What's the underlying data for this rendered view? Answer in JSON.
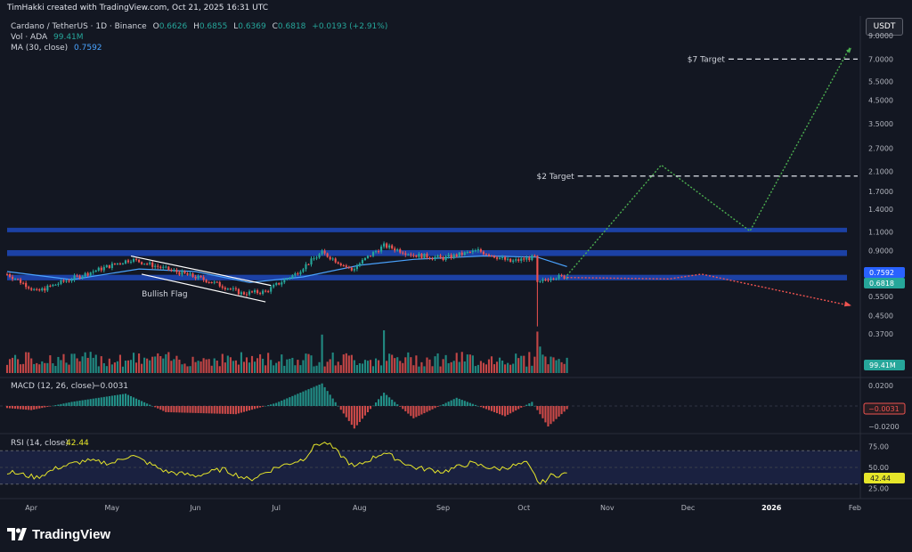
{
  "header": {
    "attribution": "TimHakki created with TradingView.com, Oct 21, 2025 16:31 UTC",
    "currency_button": "USDT"
  },
  "legend": {
    "symbol": "Cardano / TetherUS · 1D · Binance",
    "open_label": "O",
    "open": "0.6626",
    "high_label": "H",
    "high": "0.6855",
    "low_label": "L",
    "low": "0.6369",
    "close_label": "C",
    "close": "0.6818",
    "change": "+0.0193 (+2.91%)",
    "vol_label": "Vol · ADA",
    "vol_value": "99.41M",
    "ma_label": "MA (30, close)",
    "ma_value": "0.7592"
  },
  "brand": {
    "name": "TradingView",
    "logo_icon": "tradingview-logo-icon"
  },
  "colors": {
    "background": "#131722",
    "up": "#26a69a",
    "down": "#ef5350",
    "zone": "#1e46b4",
    "ma_line": "#4aa3ff",
    "projection_up": "#4caf50",
    "projection_down": "#ef5350",
    "rsi_line": "#e6e62a",
    "rsi_band": "#1a2140"
  },
  "chart_data": [
    {
      "type": "candlestick",
      "title": "Cardano / TetherUS · 1D · Binance",
      "y_scale": "log",
      "ylim": [
        0.38,
        9.0
      ],
      "y_ticks": [
        "9.0000",
        "7.0000",
        "5.5000",
        "4.5000",
        "3.5000",
        "2.7000",
        "2.1000",
        "1.7000",
        "1.4000",
        "1.1000",
        "0.9000",
        "0.7000",
        "0.5500",
        "0.4500",
        "0.3700"
      ],
      "x_ticks": [
        "Apr",
        "May",
        "Jun",
        "Jul",
        "Aug",
        "Sep",
        "Oct",
        "Nov",
        "Dec",
        "2026",
        "Feb"
      ],
      "x_range": [
        "2025-03-27",
        "2026-02-05"
      ],
      "price_labels": [
        {
          "text": "0.7592",
          "color": "#2962ff"
        },
        {
          "text": "0.6818",
          "color": "#26a69a"
        }
      ],
      "path_points": [
        [
          "2025-03-27",
          0.7
        ],
        [
          "2025-04-07",
          0.58
        ],
        [
          "2025-04-25",
          0.7
        ],
        [
          "2025-05-12",
          0.82
        ],
        [
          "2025-05-25",
          0.74
        ],
        [
          "2025-06-10",
          0.65
        ],
        [
          "2025-06-22",
          0.57
        ],
        [
          "2025-07-01",
          0.58
        ],
        [
          "2025-07-12",
          0.7
        ],
        [
          "2025-07-22",
          0.88
        ],
        [
          "2025-08-02",
          0.73
        ],
        [
          "2025-08-14",
          0.95
        ],
        [
          "2025-08-25",
          0.86
        ],
        [
          "2025-09-05",
          0.83
        ],
        [
          "2025-09-18",
          0.9
        ],
        [
          "2025-09-30",
          0.8
        ],
        [
          "2025-10-09",
          0.84
        ],
        [
          "2025-10-10",
          0.63
        ],
        [
          "2025-10-15",
          0.68
        ],
        [
          "2025-10-21",
          0.68
        ]
      ],
      "ma30": [
        [
          "2025-03-27",
          0.72
        ],
        [
          "2025-04-20",
          0.66
        ],
        [
          "2025-05-15",
          0.74
        ],
        [
          "2025-06-05",
          0.72
        ],
        [
          "2025-06-25",
          0.64
        ],
        [
          "2025-07-15",
          0.68
        ],
        [
          "2025-08-05",
          0.77
        ],
        [
          "2025-08-25",
          0.82
        ],
        [
          "2025-09-20",
          0.85
        ],
        [
          "2025-10-10",
          0.84
        ],
        [
          "2025-10-21",
          0.7592
        ]
      ],
      "support_zones": [
        [
          1.1,
          1.15
        ],
        [
          0.85,
          0.905
        ],
        [
          0.655,
          0.695
        ]
      ],
      "projection_bullish": [
        [
          "2025-10-21",
          0.69
        ],
        [
          "2025-11-25",
          2.25
        ],
        [
          "2025-12-28",
          1.11
        ],
        [
          "2026-02-03",
          7.9
        ]
      ],
      "projection_bearish": [
        [
          "2025-10-21",
          0.675
        ],
        [
          "2025-11-28",
          0.665
        ],
        [
          "2025-12-10",
          0.7
        ],
        [
          "2026-02-03",
          0.5
        ]
      ],
      "annotations": [
        {
          "text": "$7 Target",
          "price": 7.0,
          "from": "2025-12-20"
        },
        {
          "text": "$2 Target",
          "price": 2.0,
          "from": "2025-10-25"
        },
        {
          "text": "Bullish Flag"
        }
      ]
    },
    {
      "type": "bar",
      "title": "Vol · ADA",
      "last_label": "99.41M",
      "note": "daily volume histogram, colored by candle direction"
    },
    {
      "type": "bar",
      "title": "MACD (12, 26, close)",
      "value": "−0.0031",
      "y_ticks": [
        "0.0200",
        "−0.0200"
      ],
      "last_label": "−0.0031",
      "shape_points": [
        [
          "2025-03-27",
          -0.002
        ],
        [
          "2025-04-05",
          -0.004
        ],
        [
          "2025-04-20",
          0.004
        ],
        [
          "2025-05-10",
          0.012
        ],
        [
          "2025-05-25",
          -0.006
        ],
        [
          "2025-06-20",
          -0.008
        ],
        [
          "2025-07-05",
          0.003
        ],
        [
          "2025-07-22",
          0.022
        ],
        [
          "2025-08-03",
          -0.022
        ],
        [
          "2025-08-14",
          0.013
        ],
        [
          "2025-08-25",
          -0.012
        ],
        [
          "2025-09-10",
          0.008
        ],
        [
          "2025-09-28",
          -0.01
        ],
        [
          "2025-10-08",
          0.004
        ],
        [
          "2025-10-14",
          -0.02
        ],
        [
          "2025-10-21",
          -0.0031
        ]
      ]
    },
    {
      "type": "line",
      "title": "RSI (14, close)",
      "value": "42.44",
      "y_ticks": [
        "75.00",
        "50.00",
        "25.00"
      ],
      "band": [
        30,
        70
      ],
      "last_label": "42.44",
      "points": [
        [
          "2025-03-27",
          45
        ],
        [
          "2025-04-07",
          38
        ],
        [
          "2025-04-15",
          50
        ],
        [
          "2025-04-25",
          58
        ],
        [
          "2025-05-05",
          55
        ],
        [
          "2025-05-12",
          65
        ],
        [
          "2025-05-25",
          45
        ],
        [
          "2025-06-05",
          40
        ],
        [
          "2025-06-15",
          48
        ],
        [
          "2025-06-25",
          35
        ],
        [
          "2025-07-05",
          50
        ],
        [
          "2025-07-15",
          60
        ],
        [
          "2025-07-20",
          78
        ],
        [
          "2025-07-24",
          79
        ],
        [
          "2025-08-03",
          50
        ],
        [
          "2025-08-14",
          68
        ],
        [
          "2025-08-25",
          50
        ],
        [
          "2025-09-05",
          45
        ],
        [
          "2025-09-15",
          55
        ],
        [
          "2025-09-25",
          48
        ],
        [
          "2025-10-06",
          55
        ],
        [
          "2025-10-11",
          30
        ],
        [
          "2025-10-15",
          40
        ],
        [
          "2025-10-21",
          42.44
        ]
      ]
    }
  ]
}
